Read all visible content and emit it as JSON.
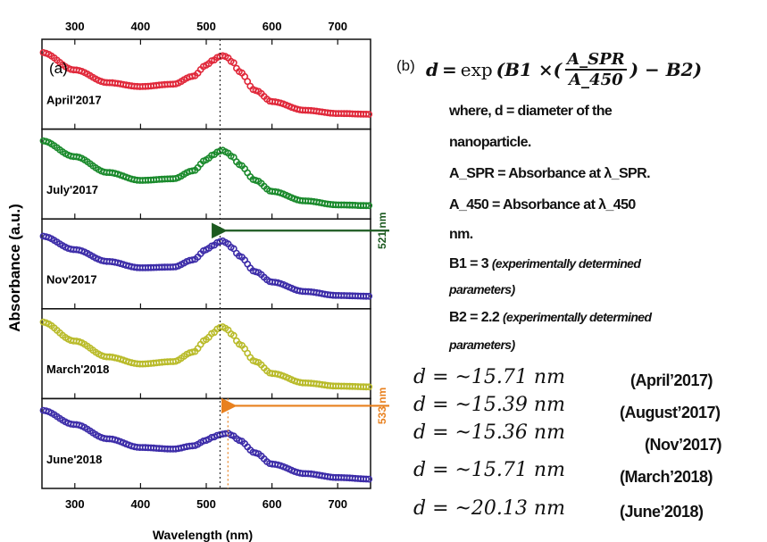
{
  "chart_data": {
    "type": "scatter",
    "panel_label": "(a)",
    "xlabel": "Wavelength (nm)",
    "ylabel": "Absorbance (a.u.)",
    "xlim": [
      250,
      750
    ],
    "xticks": [
      300,
      400,
      500,
      600,
      700
    ],
    "top_axis_ticks": [
      300,
      400,
      500,
      600,
      700
    ],
    "grid": false,
    "series": [
      {
        "name": "April'2017",
        "color": "#e0283a",
        "x": [
          250,
          300,
          350,
          400,
          450,
          480,
          500,
          510,
          520,
          525,
          530,
          540,
          550,
          575,
          600,
          650,
          700,
          750
        ],
        "y": [
          0.9,
          0.68,
          0.52,
          0.47,
          0.5,
          0.6,
          0.74,
          0.8,
          0.85,
          0.86,
          0.85,
          0.78,
          0.66,
          0.42,
          0.28,
          0.17,
          0.13,
          0.12
        ]
      },
      {
        "name": "July'2017",
        "color": "#1a8a2c",
        "x": [
          250,
          300,
          350,
          400,
          450,
          480,
          500,
          510,
          520,
          525,
          530,
          540,
          550,
          575,
          600,
          650,
          700,
          750
        ],
        "y": [
          0.92,
          0.72,
          0.52,
          0.42,
          0.44,
          0.54,
          0.68,
          0.74,
          0.79,
          0.8,
          0.78,
          0.72,
          0.62,
          0.42,
          0.28,
          0.16,
          0.11,
          0.1
        ]
      },
      {
        "name": "Nov'2017",
        "color": "#3c2ca8",
        "x": [
          250,
          300,
          350,
          400,
          450,
          480,
          500,
          510,
          520,
          525,
          530,
          540,
          550,
          575,
          600,
          650,
          700,
          750
        ],
        "y": [
          0.85,
          0.68,
          0.53,
          0.45,
          0.46,
          0.55,
          0.68,
          0.73,
          0.78,
          0.79,
          0.77,
          0.7,
          0.6,
          0.4,
          0.27,
          0.15,
          0.1,
          0.09
        ]
      },
      {
        "name": "March'2018",
        "color": "#b9bb2a",
        "x": [
          250,
          300,
          350,
          400,
          450,
          480,
          500,
          510,
          520,
          525,
          530,
          540,
          550,
          575,
          600,
          650,
          700,
          750
        ],
        "y": [
          0.9,
          0.66,
          0.46,
          0.37,
          0.4,
          0.52,
          0.68,
          0.76,
          0.83,
          0.84,
          0.82,
          0.74,
          0.62,
          0.4,
          0.25,
          0.13,
          0.09,
          0.08
        ]
      },
      {
        "name": "June'2018",
        "color": "#3c2ca8",
        "x": [
          250,
          300,
          350,
          400,
          450,
          480,
          500,
          510,
          520,
          525,
          533,
          540,
          550,
          575,
          600,
          650,
          700,
          750
        ],
        "y": [
          0.92,
          0.74,
          0.56,
          0.45,
          0.43,
          0.47,
          0.54,
          0.58,
          0.61,
          0.62,
          0.63,
          0.6,
          0.54,
          0.38,
          0.24,
          0.12,
          0.07,
          0.05
        ]
      }
    ],
    "annotations": [
      {
        "text": "521 nm",
        "x": 521,
        "color": "#1c5a20"
      },
      {
        "text": "533 nm",
        "x": 533,
        "color": "#e8801e"
      }
    ]
  },
  "panel_b": {
    "label": "(b)",
    "formula": {
      "lhs": "d",
      "eq": "=",
      "fn": "exp",
      "pre": "(B1 ×(",
      "num": "A_SPR",
      "den": "A_450",
      "post": ") − B2)"
    },
    "notes": [
      "where, d = diameter of the",
      "nanoparticle.",
      "A_SPR = Absorbance at λ_SPR.",
      "A_450 = Absorbance at λ_450",
      "nm.",
      "B1 = 3 ",
      "parameters)",
      "B2 = 2.2 ",
      "parameters)"
    ],
    "notes_italic": [
      "(experimentally determined",
      "(experimentally determined"
    ],
    "results": [
      {
        "value": "d = ~15.71 nm",
        "label": "(April’2017)"
      },
      {
        "value": "d = ~15.39 nm",
        "label": "(August’2017)"
      },
      {
        "value": "d = ~15.36 nm",
        "label": "(Nov’2017)"
      },
      {
        "value": "d = ~15.71 nm",
        "label": "(March’2018)"
      },
      {
        "value": "d = ~20.13 nm",
        "label": "(June’2018)"
      }
    ]
  }
}
